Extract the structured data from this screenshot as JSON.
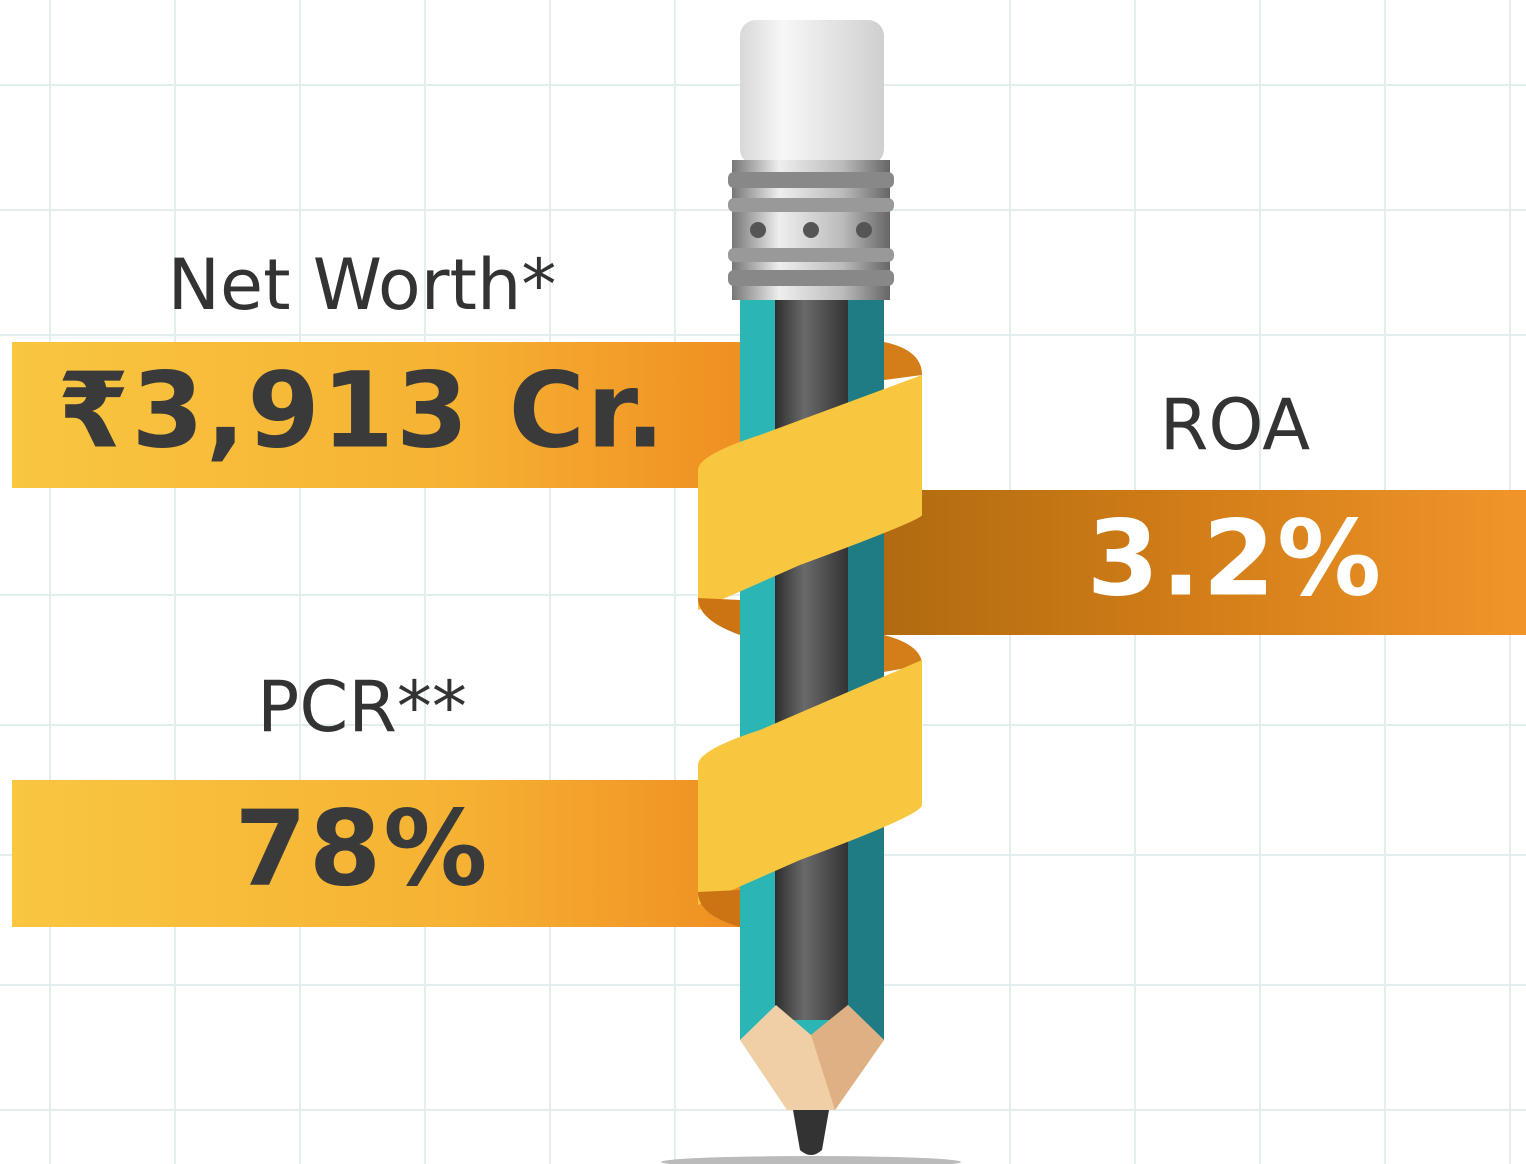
{
  "metrics": [
    {
      "label": "Net Worth*",
      "value": "₹3,913 Cr."
    },
    {
      "label": "ROA",
      "value": "3.2%"
    },
    {
      "label": "PCR**",
      "value": "78%"
    }
  ]
}
